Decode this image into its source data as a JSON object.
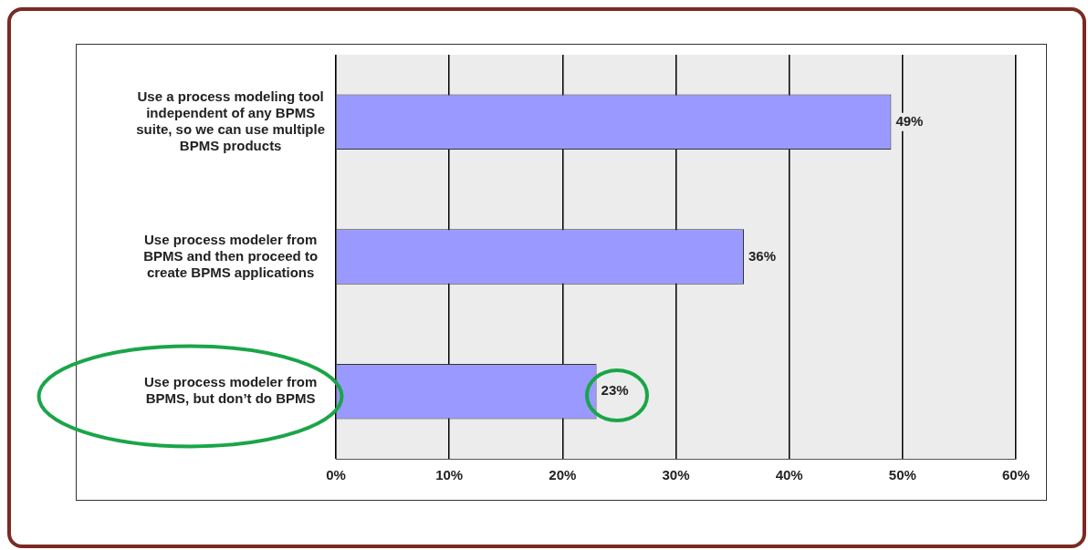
{
  "chart_data": {
    "type": "bar",
    "orientation": "horizontal",
    "categories": [
      "Use a process modeling tool independent of any BPMS suite, so we can use multiple BPMS products",
      "Use process modeler from BPMS and then proceed to create BPMS applications",
      "Use process modeler from BPMS, but don’t do BPMS"
    ],
    "values": [
      49,
      36,
      23
    ],
    "value_labels": [
      "49%",
      "36%",
      "23%"
    ],
    "color": "#9999ff",
    "xlim": [
      0,
      60
    ],
    "xticks": [
      {
        "value": 0,
        "label": "0%"
      },
      {
        "value": 10,
        "label": "10%"
      },
      {
        "value": 20,
        "label": "20%"
      },
      {
        "value": 30,
        "label": "30%"
      },
      {
        "value": 40,
        "label": "40%"
      },
      {
        "value": 50,
        "label": "50%"
      },
      {
        "value": 60,
        "label": "60%"
      }
    ],
    "grid": "x",
    "legend": false
  }
}
